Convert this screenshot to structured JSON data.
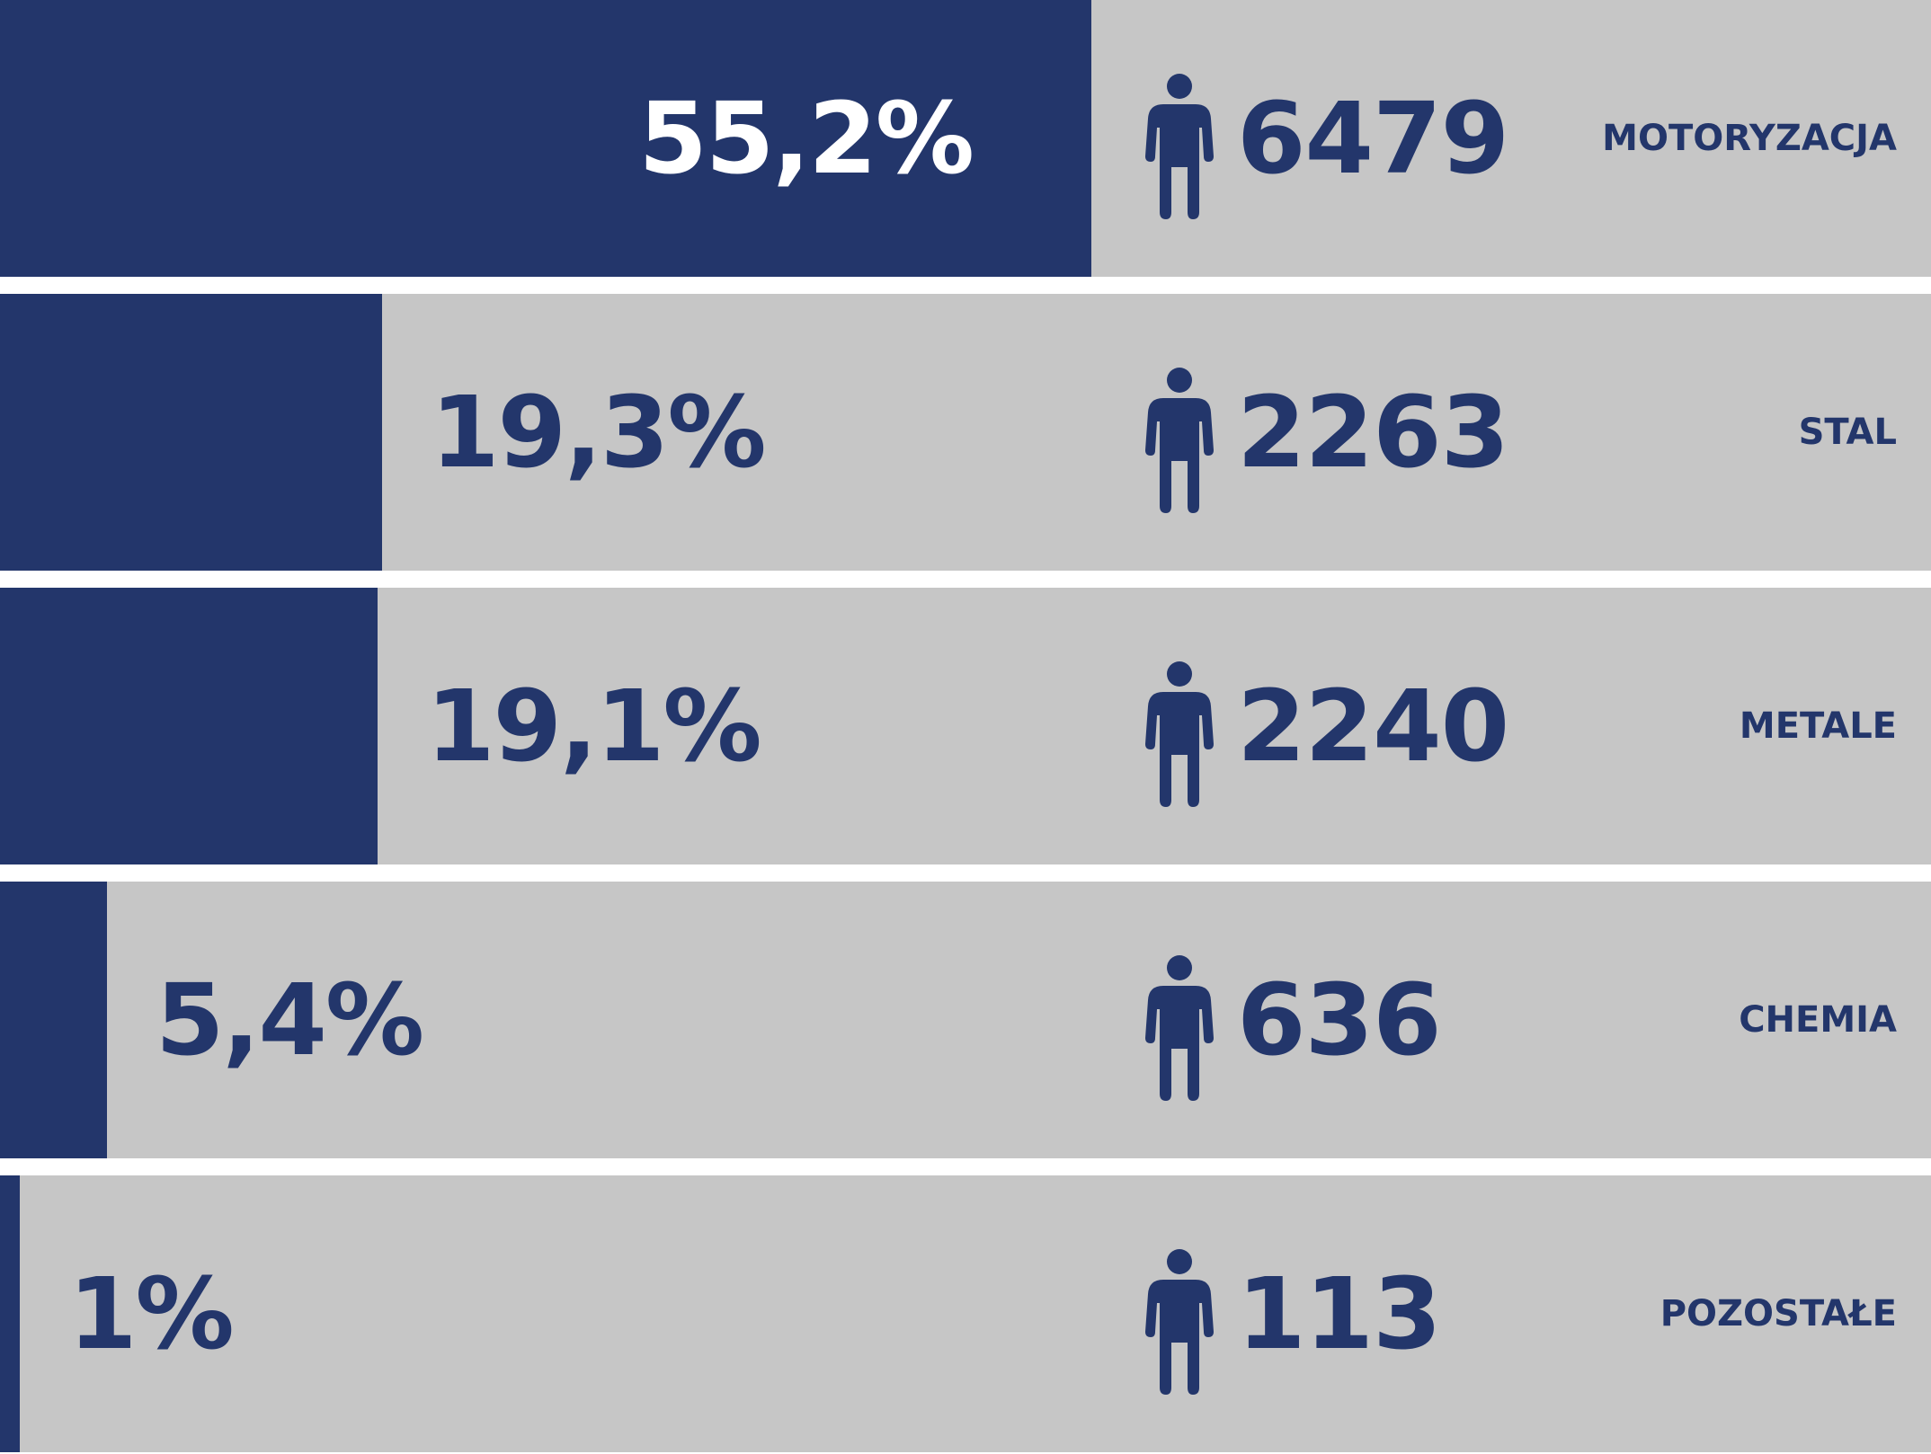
{
  "colors": {
    "bar": "#23366b",
    "track": "#c6c6c6",
    "text_dark": "#23366b",
    "text_light": "#ffffff"
  },
  "chart_data": {
    "type": "bar",
    "orientation": "horizontal",
    "title": "",
    "xlabel": "",
    "ylabel": "",
    "xlim": [
      0,
      100
    ],
    "categories": [
      "MOTORYZACJA",
      "STAL",
      "METALE",
      "CHEMIA",
      "POZOSTAŁE"
    ],
    "values": [
      55.2,
      19.3,
      19.1,
      5.4,
      1
    ],
    "percent_labels": [
      "55,2%",
      "19,3%",
      "19,1%",
      "5,4%",
      "1%"
    ],
    "counts": [
      6479,
      2263,
      2240,
      636,
      113
    ],
    "count_labels": [
      "6479",
      "2263",
      "2240",
      "636",
      "113"
    ],
    "icon": "person-icon",
    "grid": false,
    "legend": "none"
  }
}
